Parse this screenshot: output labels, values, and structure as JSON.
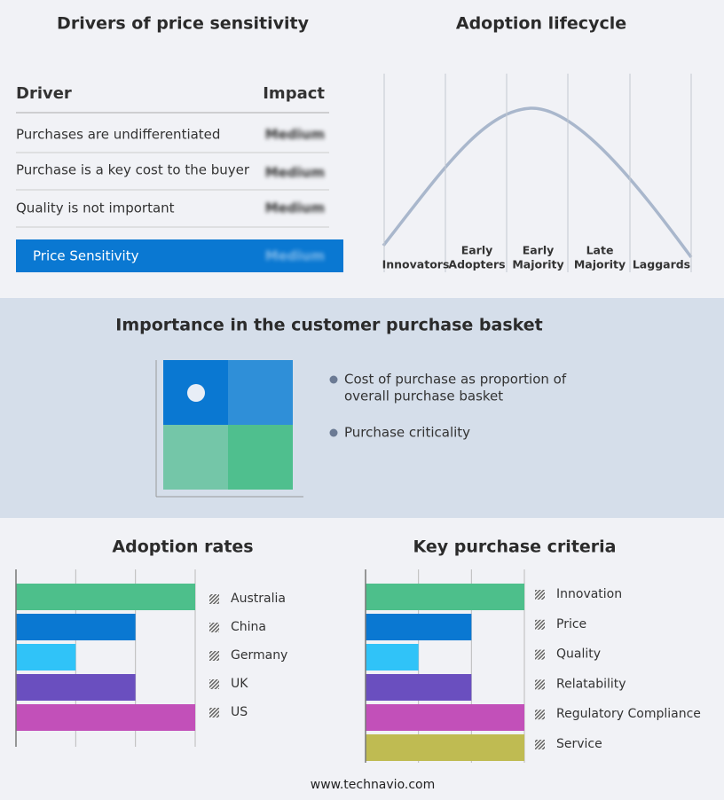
{
  "drivers": {
    "title": "Drivers of price sensitivity",
    "header": [
      "Driver",
      "Impact"
    ],
    "rows": [
      [
        "Purchases are undifferentiated",
        "Medium"
      ],
      [
        "Purchase is a key cost to the buyer",
        "Medium"
      ],
      [
        "Quality is not important",
        "Medium"
      ]
    ],
    "summary": [
      "Price Sensitivity",
      "Medium"
    ]
  },
  "lifecycle": {
    "title": "Adoption lifecycle",
    "stages": [
      [
        "Innovators"
      ],
      [
        "Early",
        "Adopters"
      ],
      [
        "Early",
        "Majority"
      ],
      [
        "Late",
        "Majority"
      ],
      [
        "Laggards"
      ]
    ]
  },
  "basket": {
    "title": "Importance in the customer purchase basket",
    "legend": [
      [
        "Cost of purchase as proportion of",
        "overall purchase basket"
      ],
      [
        "Purchase criticality"
      ]
    ]
  },
  "chart_data": [
    {
      "type": "bar",
      "title": "Adoption rates",
      "categories": [
        "Australia",
        "China",
        "Germany",
        "UK",
        "US"
      ],
      "values": [
        3,
        2,
        1,
        2,
        3
      ],
      "colors": [
        "#4dbf8b",
        "#0a78d2",
        "#30c3f8",
        "#6a4fbf",
        "#c250b9"
      ],
      "xlim": [
        0,
        3
      ],
      "grid": true
    },
    {
      "type": "bar",
      "title": "Key purchase criteria",
      "categories": [
        "Innovation",
        "Price",
        "Quality",
        "Relatability",
        "Regulatory Compliance",
        "Service"
      ],
      "values": [
        3,
        2,
        1,
        2,
        3,
        3
      ],
      "colors": [
        "#4dbf8b",
        "#0a78d2",
        "#30c3f8",
        "#6a4fbf",
        "#c250b9",
        "#bfbb52"
      ],
      "xlim": [
        0,
        3
      ],
      "grid": true
    }
  ],
  "footer": "www.technavio.com"
}
